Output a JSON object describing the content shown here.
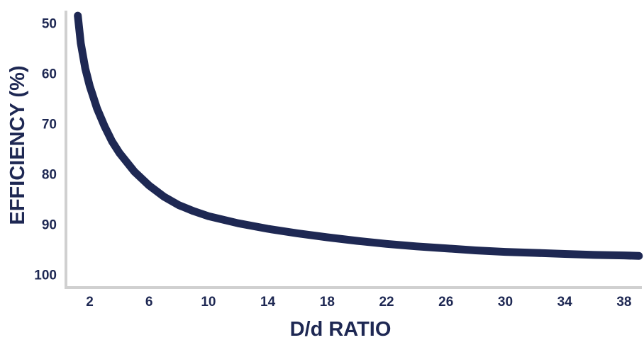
{
  "chart_data": {
    "type": "line",
    "title": "",
    "xlabel": "D/d RATIO",
    "ylabel": "EFFICIENCY (%)",
    "x_ticks": [
      2,
      6,
      10,
      14,
      18,
      22,
      26,
      30,
      34,
      38
    ],
    "y_ticks": [
      50,
      60,
      70,
      80,
      90,
      100
    ],
    "xlim": [
      0.4,
      39.2
    ],
    "ylim": [
      50,
      100
    ],
    "y_inverted": true,
    "grid": false,
    "colors": {
      "line": "#1e2853",
      "axis": "#d0d0d0",
      "text": "#1e2853"
    },
    "series": [
      {
        "x": [
          1.2,
          1.4,
          1.7,
          2,
          2.5,
          3,
          3.5,
          4,
          5,
          6,
          7,
          8,
          9,
          10,
          12,
          14,
          16,
          18,
          20,
          22,
          24,
          26,
          28,
          30,
          32,
          34,
          36,
          38,
          39
        ],
        "y": [
          48.5,
          54,
          59,
          62.5,
          67,
          70.5,
          73.5,
          75.8,
          79.5,
          82.3,
          84.5,
          86.2,
          87.4,
          88.4,
          89.8,
          90.9,
          91.8,
          92.6,
          93.3,
          93.9,
          94.4,
          94.8,
          95.2,
          95.5,
          95.7,
          95.9,
          96.1,
          96.2,
          96.3
        ]
      }
    ]
  }
}
